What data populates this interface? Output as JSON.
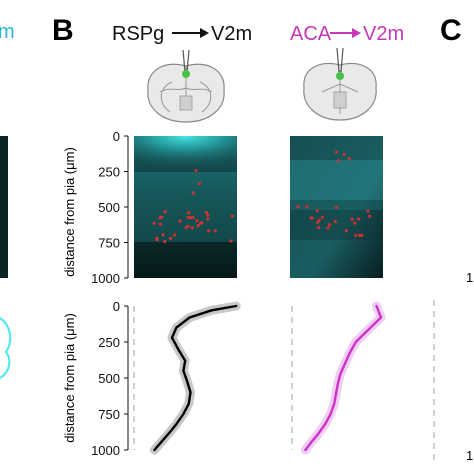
{
  "figure": {
    "fragment_left_text": "m",
    "fragment_right_digit_top": "1",
    "fragment_right_digit_bottom": "1"
  },
  "panels": {
    "B": {
      "letter": "B",
      "header_left_source": "RSPg",
      "header_left_target": "V2m",
      "header_right_source": "ACA",
      "header_right_target": "V2m",
      "colors": {
        "projection_left": "#000000",
        "projection_right": "#cc33cc",
        "fluor": "#3ee0e0",
        "cells": "#e03030"
      }
    },
    "C": {
      "letter": "C"
    }
  },
  "chart_data": [
    {
      "type": "line",
      "ylabel": "distance from pia (μm)",
      "ylim": [
        1000,
        0
      ],
      "yticks": [
        "0",
        "250",
        "500",
        "750",
        "1000"
      ],
      "series": [
        {
          "color": "#000000",
          "x": [
            0.98,
            0.7,
            0.45,
            0.3,
            0.25,
            0.32,
            0.4,
            0.38,
            0.42,
            0.46,
            0.44,
            0.38,
            0.3,
            0.22,
            0.12,
            0.05
          ],
          "y": [
            0,
            30,
            80,
            150,
            220,
            300,
            380,
            450,
            520,
            600,
            680,
            750,
            820,
            880,
            950,
            1000
          ]
        },
        {
          "color": "#cc33cc",
          "x": [
            0.85,
            0.9,
            0.75,
            0.62,
            0.55,
            0.5,
            0.45,
            0.42,
            0.4,
            0.38,
            0.34,
            0.28,
            0.2,
            0.12,
            0.06
          ],
          "y": [
            0,
            80,
            170,
            250,
            330,
            400,
            470,
            540,
            610,
            680,
            750,
            820,
            890,
            950,
            1000
          ]
        }
      ]
    }
  ]
}
